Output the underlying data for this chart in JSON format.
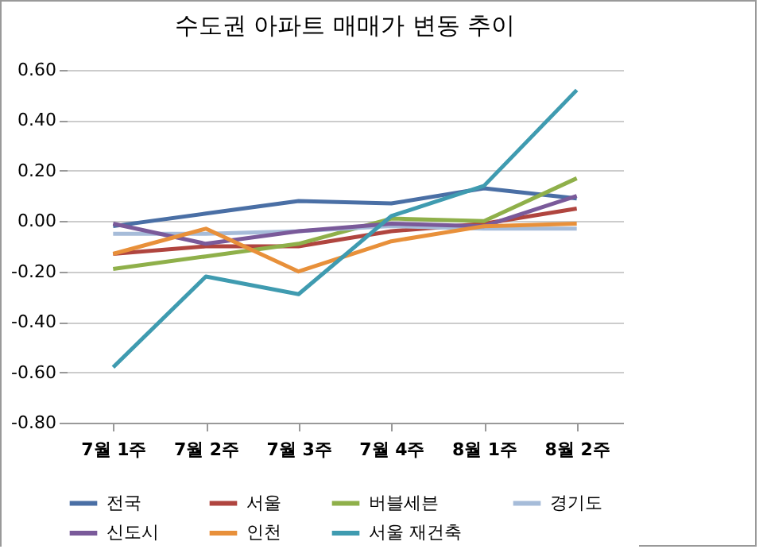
{
  "chart_data": {
    "type": "line",
    "title": "수도권 아파트 매매가 변동 추이",
    "categories": [
      "7월 1주",
      "7월 2주",
      "7월 3주",
      "7월 4주",
      "8월 1주",
      "8월 2주"
    ],
    "series": [
      {
        "name": "전국",
        "color": "#4a6fa5",
        "values": [
          -0.02,
          0.03,
          0.08,
          0.07,
          0.13,
          0.09
        ]
      },
      {
        "name": "서울",
        "color": "#b0453f",
        "values": [
          -0.13,
          -0.1,
          -0.1,
          -0.04,
          -0.01,
          0.05
        ]
      },
      {
        "name": "버블세븐",
        "color": "#8fb04a",
        "values": [
          -0.19,
          -0.14,
          -0.09,
          0.01,
          0.0,
          0.17
        ]
      },
      {
        "name": "경기도",
        "color": "#a6bcd9",
        "values": [
          -0.05,
          -0.05,
          -0.04,
          -0.02,
          -0.03,
          -0.03
        ]
      },
      {
        "name": "신도시",
        "color": "#7a5a9a",
        "values": [
          -0.01,
          -0.09,
          -0.04,
          -0.01,
          -0.02,
          0.1
        ]
      },
      {
        "name": "인천",
        "color": "#e8903a",
        "values": [
          -0.13,
          -0.03,
          -0.2,
          -0.08,
          -0.02,
          -0.01
        ]
      },
      {
        "name": "서울 재건축",
        "color": "#3f9bb0",
        "values": [
          -0.58,
          -0.22,
          -0.29,
          0.02,
          0.14,
          0.52
        ]
      }
    ],
    "ylim": [
      -0.8,
      0.6
    ],
    "yticks": [
      {
        "value": -0.8,
        "label": "-0.80"
      },
      {
        "value": -0.6,
        "label": "-0.60"
      },
      {
        "value": -0.4,
        "label": "-0.40"
      },
      {
        "value": -0.2,
        "label": "-0.20"
      },
      {
        "value": 0,
        "label": "0.00"
      },
      {
        "value": 0.2,
        "label": "0.20"
      },
      {
        "value": 0.4,
        "label": "0.40"
      },
      {
        "value": 0.6,
        "label": "0.60"
      }
    ],
    "grid": "y",
    "legend": "bottom"
  }
}
